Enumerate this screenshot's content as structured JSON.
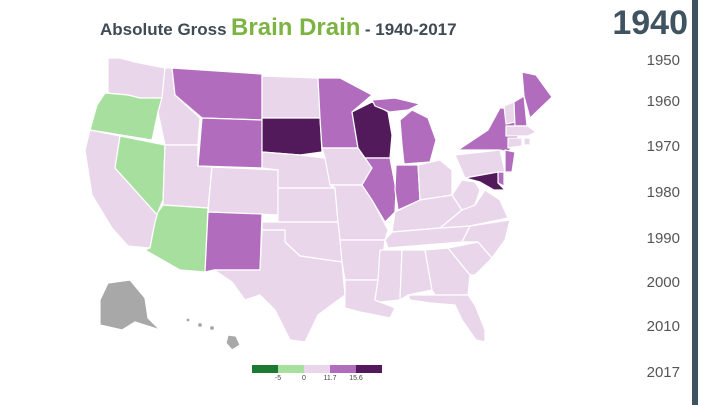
{
  "title": {
    "prefix": "Absolute Gross",
    "main": "Brain Drain",
    "suffix": "- 1940-2017"
  },
  "current_year": "1940",
  "timeline": [
    "1950",
    "1960",
    "1970",
    "1980",
    "1990",
    "2000",
    "2010",
    "2017"
  ],
  "legend": {
    "ticks": [
      "-5",
      "0",
      "11.7",
      "15.6"
    ],
    "colors": [
      "#1a7a34",
      "#a6df9e",
      "#ead6ea",
      "#b26cbd",
      "#531a5b"
    ]
  },
  "colors": {
    "no_data": "#a8a8a8",
    "accent": "#7cb342",
    "timeline_bar": "#3f5360"
  },
  "states": {
    "WA": 3,
    "OR": 2,
    "CA": 3,
    "NV": 2,
    "ID": 3,
    "MT": 4,
    "WY": 4,
    "UT": 3,
    "AZ": 2,
    "CO": 3,
    "NM": 4,
    "ND": 3,
    "SD": 5,
    "NE": 3,
    "KS": 3,
    "OK": 3,
    "TX": 3,
    "MN": 4,
    "IA": 3,
    "MO": 3,
    "AR": 3,
    "LA": 3,
    "WI": 5,
    "IL": 4,
    "MI": 4,
    "IN": 4,
    "OH": 3,
    "KY": 3,
    "TN": 3,
    "MS": 3,
    "AL": 3,
    "GA": 3,
    "FL": 3,
    "SC": 3,
    "NC": 3,
    "VA": 3,
    "WV": 3,
    "PA": 3,
    "NY": 4,
    "NJ": 4,
    "DE": 4,
    "MD": 5,
    "DC": 5,
    "CT": 3,
    "RI": 3,
    "MA": 3,
    "VT": 3,
    "NH": 4,
    "ME": 4,
    "AK": 0,
    "HI": 0
  }
}
